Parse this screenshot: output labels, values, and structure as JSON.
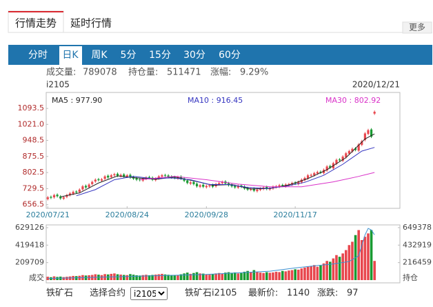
{
  "tabs": [
    "行情走势",
    "延时行情"
  ],
  "more": "更多",
  "toolbar": [
    "分时",
    "日K",
    "周K",
    "5分",
    "15分",
    "30分",
    "60分"
  ],
  "info": {
    "volume_label": "成交量:",
    "volume": 789078,
    "oi_label": "持仓量:",
    "oi": 511471,
    "change_label": "涨幅:",
    "change": "9.29%"
  },
  "contract": "i2105",
  "date": "2020/12/21",
  "footer": {
    "name": "铁矿石",
    "select_label": "选择合约",
    "select_value": "i2105",
    "contract": "铁矿石i2105",
    "price_label": "最新价:",
    "price": 1140,
    "change_label": "涨跌:",
    "change": 97
  },
  "chart_data": [
    {
      "type": "candlestick",
      "up_color": "#e8474e",
      "down_color": "#1a9a32",
      "ylim": [
        640,
        1166
      ],
      "yticks": [
        656.5,
        729.5,
        802.5,
        875.5,
        948.5,
        {
          "value": 1021,
          "label": "1021.0"
        },
        1093.5
      ],
      "xlim": [
        -0.5,
        111
      ],
      "xticks": [
        {
          "value": 0,
          "label": "2020/07/21"
        },
        {
          "value": 25,
          "label": "2020/08/24"
        },
        {
          "value": 50,
          "label": "2020/09/28"
        },
        {
          "value": 78,
          "label": "2020/11/17"
        }
      ],
      "legend_separator": " : ",
      "open": [
        682,
        692,
        690,
        702,
        694,
        684,
        692,
        700,
        706,
        716,
        714,
        726,
        742,
        736,
        750,
        762,
        772,
        766,
        774,
        788,
        782,
        790,
        797,
        786,
        794,
        784,
        792,
        782,
        778,
        772,
        766,
        774,
        782,
        779,
        768,
        776,
        784,
        791,
        789,
        784,
        782,
        776,
        784,
        776,
        767,
        752,
        760,
        752,
        738,
        747,
        736,
        740,
        746,
        740,
        750,
        754,
        762,
        754,
        746,
        742,
        734,
        744,
        739,
        732,
        724,
        730,
        718,
        724,
        728,
        737,
        726,
        730,
        736,
        738,
        746,
        740,
        746,
        748,
        757,
        750,
        758,
        768,
        776,
        788,
        790,
        798,
        806,
        800,
        812,
        832,
        822,
        842,
        862,
        856,
        872,
        888,
        898,
        912,
        902,
        928,
        950,
        978,
        998,
        1070
      ],
      "high": [
        696,
        698,
        706,
        708,
        700,
        696,
        706,
        714,
        721,
        722,
        731,
        746,
        748,
        754,
        766,
        776,
        778,
        778,
        791,
        794,
        796,
        801,
        803,
        798,
        800,
        796,
        798,
        788,
        784,
        778,
        781,
        786,
        788,
        785,
        781,
        791,
        796,
        797,
        795,
        790,
        788,
        788,
        790,
        782,
        773,
        764,
        766,
        758,
        751,
        753,
        748,
        751,
        752,
        756,
        761,
        766,
        768,
        760,
        752,
        748,
        748,
        750,
        745,
        738,
        734,
        736,
        731,
        736,
        741,
        743,
        738,
        744,
        746,
        751,
        752,
        754,
        756,
        761,
        763,
        766,
        776,
        784,
        796,
        798,
        806,
        811,
        812,
        821,
        836,
        838,
        851,
        866,
        868,
        881,
        896,
        906,
        916,
        918,
        936,
        951,
        986,
        1001,
        1004,
        1084
      ],
      "low": [
        676,
        682,
        684,
        689,
        679,
        678,
        686,
        694,
        700,
        706,
        708,
        720,
        729,
        730,
        744,
        756,
        762,
        760,
        768,
        774,
        776,
        784,
        782,
        780,
        779,
        778,
        774,
        769,
        764,
        762,
        760,
        768,
        772,
        764,
        762,
        770,
        778,
        782,
        776,
        774,
        772,
        770,
        769,
        759,
        749,
        746,
        744,
        734,
        732,
        732,
        730,
        734,
        732,
        734,
        744,
        748,
        746,
        739,
        734,
        729,
        728,
        732,
        724,
        719,
        718,
        714,
        712,
        718,
        722,
        722,
        720,
        724,
        730,
        732,
        736,
        734,
        740,
        742,
        746,
        744,
        752,
        762,
        770,
        782,
        784,
        792,
        796,
        794,
        806,
        819,
        816,
        836,
        852,
        850,
        866,
        882,
        892,
        899,
        896,
        922,
        944,
        972,
        959,
        1064
      ],
      "close": [
        690,
        688,
        700,
        695,
        685,
        690,
        700,
        708,
        715,
        712,
        725,
        740,
        735,
        748,
        760,
        770,
        768,
        772,
        785,
        780,
        790,
        795,
        788,
        792,
        785,
        790,
        780,
        775,
        770,
        768,
        775,
        780,
        778,
        770,
        775,
        785,
        790,
        788,
        782,
        780,
        778,
        782,
        775,
        765,
        755,
        758,
        750,
        740,
        745,
        738,
        742,
        745,
        738,
        750,
        755,
        760,
        752,
        745,
        740,
        735,
        742,
        738,
        730,
        725,
        728,
        720,
        725,
        730,
        735,
        728,
        732,
        738,
        740,
        745,
        742,
        748,
        750,
        755,
        752,
        760,
        770,
        778,
        790,
        792,
        800,
        805,
        802,
        815,
        830,
        825,
        845,
        860,
        858,
        875,
        890,
        900,
        910,
        905,
        930,
        945,
        980,
        995,
        965,
        1078
      ],
      "series": [
        {
          "name": "MA5",
          "color": "#222222",
          "current_label": "977.90",
          "x": [
            4,
            10,
            16,
            22,
            28,
            34,
            40,
            46,
            52,
            58,
            64,
            70,
            76,
            82,
            88,
            94,
            100,
            103
          ],
          "values": [
            692,
            710,
            755,
            787,
            778,
            772,
            782,
            765,
            745,
            748,
            728,
            730,
            746,
            775,
            815,
            870,
            955,
            977.9
          ]
        },
        {
          "name": "MA10",
          "color": "#3434c0",
          "current_label": "916.45",
          "x": [
            9,
            15,
            21,
            27,
            33,
            39,
            45,
            51,
            57,
            63,
            69,
            75,
            81,
            87,
            93,
            99,
            103
          ],
          "values": [
            697,
            725,
            770,
            785,
            775,
            778,
            770,
            748,
            748,
            735,
            730,
            740,
            758,
            790,
            840,
            900,
            916.45
          ]
        },
        {
          "name": "MA30",
          "color": "#d930c8",
          "current_label": "802.92",
          "x": [
            29,
            40,
            50,
            60,
            70,
            80,
            90,
            98,
            103
          ],
          "values": [
            770,
            785,
            770,
            750,
            738,
            738,
            760,
            785,
            802.92
          ]
        }
      ]
    },
    {
      "type": "bar",
      "ylim": [
        0,
        662000
      ],
      "yticks": [
        209709,
        419418,
        629126
      ],
      "y2lim": [
        0,
        683000
      ],
      "y2ticks": [
        216459,
        432919,
        649378
      ],
      "xlim": [
        -0.5,
        111
      ],
      "series": [
        {
          "name": "成交",
          "values": [
            40000,
            35000,
            45000,
            38000,
            42000,
            36000,
            40000,
            44000,
            50000,
            48000,
            52000,
            60000,
            55000,
            58000,
            62000,
            70000,
            65000,
            60000,
            72000,
            68000,
            75000,
            80000,
            70000,
            66000,
            62000,
            60000,
            72000,
            65000,
            58000,
            55000,
            60000,
            64000,
            58000,
            62000,
            66000,
            70000,
            75000,
            68000,
            64000,
            60000,
            58000,
            62000,
            70000,
            80000,
            90000,
            75000,
            85000,
            95000,
            80000,
            78000,
            70000,
            65000,
            72000,
            80000,
            85000,
            78000,
            90000,
            95000,
            88000,
            92000,
            80000,
            85000,
            100000,
            110000,
            95000,
            120000,
            100000,
            90000,
            85000,
            95000,
            88000,
            92000,
            100000,
            96000,
            110000,
            105000,
            115000,
            120000,
            130000,
            125000,
            140000,
            150000,
            160000,
            170000,
            180000,
            160000,
            175000,
            200000,
            230000,
            220000,
            260000,
            300000,
            280000,
            320000,
            360000,
            420000,
            460000,
            540000,
            600000,
            480000,
            520000,
            560000,
            600000,
            230000
          ]
        },
        {
          "name": "持仓",
          "axis": "y2",
          "color": "#3a8fd0",
          "x": [
            0,
            10,
            20,
            30,
            40,
            50,
            60,
            70,
            78,
            85,
            90,
            95,
            98,
            100,
            101,
            102,
            103
          ],
          "values": [
            20000,
            30000,
            40000,
            50000,
            60000,
            70000,
            90000,
            110000,
            150000,
            180000,
            200000,
            230000,
            300000,
            560000,
            640000,
            620000,
            560000
          ]
        }
      ]
    }
  ]
}
